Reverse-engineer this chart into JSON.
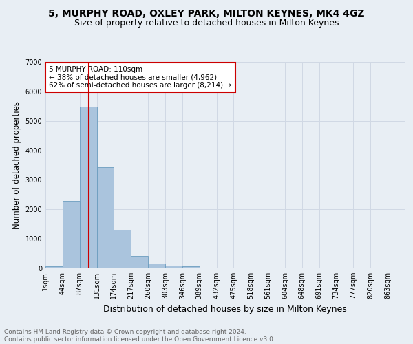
{
  "title1": "5, MURPHY ROAD, OXLEY PARK, MILTON KEYNES, MK4 4GZ",
  "title2": "Size of property relative to detached houses in Milton Keynes",
  "xlabel": "Distribution of detached houses by size in Milton Keynes",
  "ylabel": "Number of detached properties",
  "bin_labels": [
    "1sqm",
    "44sqm",
    "87sqm",
    "131sqm",
    "174sqm",
    "217sqm",
    "260sqm",
    "303sqm",
    "346sqm",
    "389sqm",
    "432sqm",
    "475sqm",
    "518sqm",
    "561sqm",
    "604sqm",
    "648sqm",
    "691sqm",
    "734sqm",
    "777sqm",
    "820sqm",
    "863sqm"
  ],
  "bar_values": [
    75,
    2280,
    5480,
    3430,
    1310,
    430,
    165,
    95,
    60,
    0,
    0,
    0,
    0,
    0,
    0,
    0,
    0,
    0,
    0,
    0,
    0
  ],
  "bar_color": "#aac4dd",
  "bar_edge_color": "#6b9dbf",
  "grid_color": "#d0d8e4",
  "bg_color": "#e8eef4",
  "vline_color": "#cc0000",
  "annotation_text": "5 MURPHY ROAD: 110sqm\n← 38% of detached houses are smaller (4,962)\n62% of semi-detached houses are larger (8,214) →",
  "annotation_box_color": "#cc0000",
  "ylim": [
    0,
    7000
  ],
  "yticks": [
    0,
    1000,
    2000,
    3000,
    4000,
    5000,
    6000,
    7000
  ],
  "footnote": "Contains HM Land Registry data © Crown copyright and database right 2024.\nContains public sector information licensed under the Open Government Licence v3.0.",
  "title1_fontsize": 10,
  "title2_fontsize": 9,
  "xlabel_fontsize": 9,
  "ylabel_fontsize": 8.5,
  "tick_fontsize": 7,
  "footnote_fontsize": 6.5,
  "ann_fontsize": 7.5
}
